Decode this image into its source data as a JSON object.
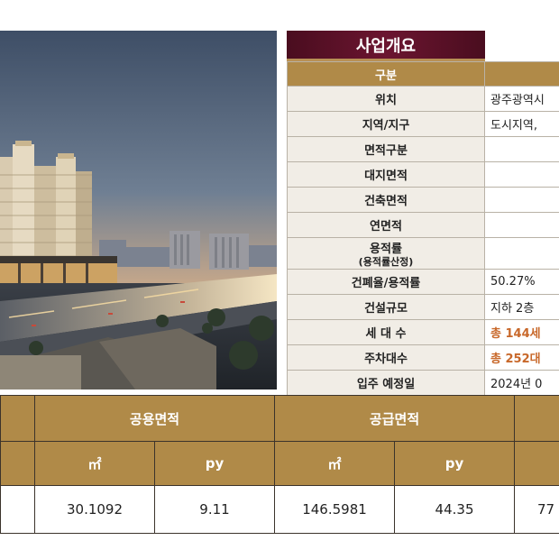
{
  "overview": {
    "title": "사업개요",
    "header_label": "구분",
    "header_value": "",
    "rows": [
      {
        "label": "위치",
        "value": "광주광역시"
      },
      {
        "label": "지역/지구",
        "value": "도시지역, "
      },
      {
        "label": "면적구분",
        "value": ""
      },
      {
        "label": "대지면적",
        "value": ""
      },
      {
        "label": "건축면적",
        "value": ""
      },
      {
        "label": "연면적",
        "value": ""
      },
      {
        "label": "용적률",
        "sub": "(용적률산정)",
        "value": ""
      },
      {
        "label": "건폐율/용적률",
        "value": "50.27%"
      },
      {
        "label": "건설규모",
        "value": "지하 2층"
      },
      {
        "label": "세 대 수",
        "value": "총 144세"
      },
      {
        "label": "주차대수",
        "value": "총 252대"
      },
      {
        "label": "입주 예정일",
        "value": "2024년 0"
      }
    ]
  },
  "area_table": {
    "group_headers": [
      "",
      "공용면적",
      "공급면적",
      ""
    ],
    "unit_headers": [
      "",
      "㎡",
      "py",
      "㎡",
      "py",
      ""
    ],
    "row": [
      "",
      "30.1092",
      "9.11",
      "146.5981",
      "44.35",
      "77"
    ]
  },
  "colors": {
    "gold": "#b08a48",
    "burgundy": "#5a1026",
    "accent_orange": "#c8682a"
  }
}
